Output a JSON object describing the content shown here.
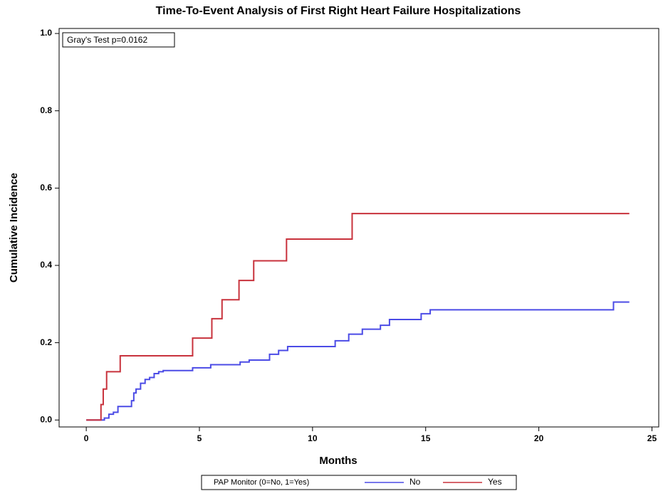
{
  "chart_data": {
    "type": "line",
    "step": true,
    "title": "Time-To-Event Analysis of First Right Heart Failure Hospitalizations",
    "xlabel": "Months",
    "ylabel": "Cumulative Incidence",
    "annotation": "Gray's Test p=0.0162",
    "legend_title": "PAP Monitor (0=No, 1=Yes)",
    "legend": "bottom",
    "xlim": [
      -1.2,
      25.3
    ],
    "xticks": [
      0,
      5,
      10,
      15,
      20,
      25
    ],
    "ylim": [
      -0.018,
      1.013
    ],
    "yticks": [
      {
        "value": 0,
        "label": "0.0"
      },
      0.2,
      0.4,
      0.6,
      0.8,
      {
        "value": 1,
        "label": "1.0"
      }
    ],
    "series": [
      {
        "name": "No",
        "color": "#4b4be6",
        "x": [
          0,
          0.8,
          1.0,
          1.2,
          1.4,
          2.0,
          2.1,
          2.2,
          2.4,
          2.6,
          2.8,
          3.0,
          3.2,
          3.4,
          4.7,
          5.5,
          6.8,
          7.2,
          8.1,
          8.5,
          8.9,
          11.0,
          11.6,
          12.2,
          13.0,
          13.4,
          14.8,
          15.2,
          23.3,
          24
        ],
        "values": [
          0,
          0.005,
          0.015,
          0.02,
          0.035,
          0.05,
          0.07,
          0.08,
          0.095,
          0.105,
          0.11,
          0.12,
          0.125,
          0.128,
          0.135,
          0.143,
          0.15,
          0.155,
          0.17,
          0.18,
          0.19,
          0.205,
          0.222,
          0.235,
          0.245,
          0.26,
          0.275,
          0.285,
          0.305,
          0.305
        ]
      },
      {
        "name": "Yes",
        "color": "#c8323c",
        "x": [
          0,
          0.65,
          0.75,
          0.9,
          1.5,
          4.7,
          5.55,
          6.0,
          6.75,
          7.4,
          8.85,
          11.75,
          24
        ],
        "values": [
          0,
          0.04,
          0.08,
          0.125,
          0.166,
          0.212,
          0.262,
          0.311,
          0.361,
          0.412,
          0.468,
          0.534,
          0.534
        ]
      }
    ]
  }
}
